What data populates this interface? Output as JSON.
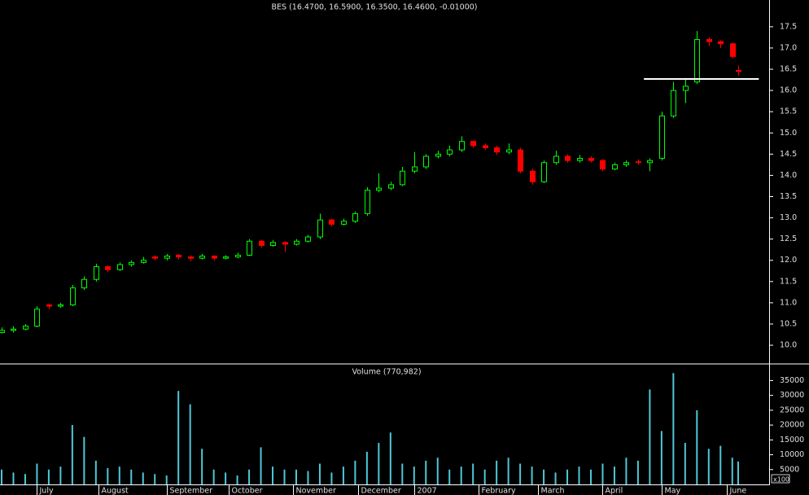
{
  "chart_data": [
    {
      "type": "candlestick",
      "title": "BES (16.4700, 16.5900, 16.3500, 16.4600, -0.01000)",
      "x": [
        0,
        4,
        8,
        12,
        16,
        20,
        24,
        28,
        32,
        36,
        40,
        44,
        48,
        52,
        56,
        60,
        64,
        68,
        72,
        76,
        80,
        84,
        88,
        92,
        96,
        100,
        104,
        108,
        112,
        116,
        120,
        124,
        128,
        132,
        136,
        140,
        144,
        148,
        152,
        156,
        160,
        164,
        168,
        172,
        176,
        180,
        184,
        188,
        192,
        196,
        200,
        204,
        208,
        212,
        216,
        220,
        224,
        228,
        232,
        236,
        240,
        244,
        248,
        250
      ],
      "open": [
        10.3,
        10.35,
        10.38,
        10.45,
        10.95,
        10.92,
        10.95,
        11.35,
        11.55,
        11.85,
        11.78,
        11.9,
        11.95,
        12.08,
        12.05,
        12.12,
        12.08,
        12.05,
        12.1,
        12.05,
        12.08,
        12.12,
        12.45,
        12.35,
        12.42,
        12.38,
        12.45,
        12.55,
        12.95,
        12.85,
        12.92,
        13.1,
        13.65,
        13.7,
        13.78,
        14.1,
        14.2,
        14.45,
        14.5,
        14.6,
        14.8,
        14.7,
        14.65,
        14.55,
        14.6,
        14.1,
        13.85,
        14.3,
        14.45,
        14.35,
        14.4,
        14.35,
        14.15,
        14.25,
        14.32,
        14.3,
        14.4,
        15.4,
        16.0,
        16.2,
        17.2,
        17.15,
        17.1,
        16.47
      ],
      "high": [
        10.42,
        10.45,
        10.5,
        10.92,
        10.98,
        11.0,
        11.42,
        11.62,
        11.92,
        11.88,
        11.95,
        12.0,
        12.08,
        12.12,
        12.15,
        12.15,
        12.12,
        12.15,
        12.12,
        12.12,
        12.18,
        12.5,
        12.48,
        12.48,
        12.45,
        12.5,
        12.6,
        13.1,
        12.98,
        12.98,
        13.15,
        13.72,
        14.05,
        13.85,
        14.2,
        14.55,
        14.5,
        14.58,
        14.7,
        14.92,
        14.82,
        14.75,
        14.7,
        14.75,
        14.65,
        14.15,
        14.35,
        14.58,
        14.5,
        14.48,
        14.45,
        14.38,
        14.3,
        14.35,
        14.38,
        14.4,
        15.5,
        16.2,
        16.25,
        17.4,
        17.25,
        17.18,
        17.12,
        16.59
      ],
      "low": [
        10.28,
        10.3,
        10.35,
        10.42,
        10.85,
        10.88,
        10.92,
        11.3,
        11.5,
        11.72,
        11.75,
        11.85,
        11.92,
        12.0,
        12.0,
        12.02,
        11.98,
        12.02,
        12.0,
        12.02,
        12.05,
        12.1,
        12.3,
        12.32,
        12.2,
        12.35,
        12.42,
        12.5,
        12.8,
        12.82,
        12.88,
        13.05,
        13.6,
        13.65,
        13.75,
        14.05,
        14.15,
        14.4,
        14.45,
        14.55,
        14.65,
        14.6,
        14.48,
        14.5,
        14.05,
        13.78,
        13.82,
        14.25,
        14.3,
        14.3,
        14.3,
        14.1,
        14.12,
        14.2,
        14.25,
        14.1,
        14.35,
        15.35,
        15.7,
        16.15,
        17.05,
        17.0,
        16.75,
        16.35
      ],
      "close": [
        10.35,
        10.38,
        10.45,
        10.85,
        10.92,
        10.95,
        11.35,
        11.55,
        11.85,
        11.78,
        11.9,
        11.95,
        12.0,
        12.05,
        12.1,
        12.08,
        12.05,
        12.1,
        12.05,
        12.08,
        12.12,
        12.45,
        12.35,
        12.42,
        12.38,
        12.45,
        12.55,
        12.95,
        12.85,
        12.92,
        13.1,
        13.65,
        13.7,
        13.78,
        14.1,
        14.2,
        14.45,
        14.5,
        14.6,
        14.8,
        14.7,
        14.65,
        14.55,
        14.6,
        14.1,
        13.85,
        14.3,
        14.45,
        14.35,
        14.4,
        14.35,
        14.15,
        14.25,
        14.3,
        14.3,
        14.35,
        15.4,
        16.0,
        16.1,
        17.2,
        17.15,
        17.1,
        16.8,
        16.46
      ],
      "up_color": "#00ff00",
      "down_color": "#ff0000",
      "xlim": [
        -0.55,
        260.5
      ],
      "ylim": [
        9.56,
        18.13
      ],
      "yticks": [
        {
          "value": 10.0,
          "label": "10.0"
        },
        10.5,
        {
          "value": 11.0,
          "label": "11.0"
        },
        11.5,
        {
          "value": 12.0,
          "label": "12.0"
        },
        12.5,
        {
          "value": 13.0,
          "label": "13.0"
        },
        13.5,
        {
          "value": 14.0,
          "label": "14.0"
        },
        14.5,
        {
          "value": 15.0,
          "label": "15.0"
        },
        15.5,
        {
          "value": 16.0,
          "label": "16.0"
        },
        16.5,
        {
          "value": 17.0,
          "label": "17.0"
        },
        17.5
      ],
      "hline": {
        "value": 16.27,
        "x": [
          218,
          257
        ],
        "color": "#ffffff"
      }
    },
    {
      "type": "bar",
      "title": "Volume (770,982)",
      "x": [
        0,
        4,
        8,
        12,
        16,
        20,
        24,
        28,
        32,
        36,
        40,
        44,
        48,
        52,
        56,
        60,
        64,
        68,
        72,
        76,
        80,
        84,
        88,
        92,
        96,
        100,
        104,
        108,
        112,
        116,
        120,
        124,
        128,
        132,
        136,
        140,
        144,
        148,
        152,
        156,
        160,
        164,
        168,
        172,
        176,
        180,
        184,
        188,
        192,
        196,
        200,
        204,
        208,
        212,
        216,
        220,
        224,
        228,
        232,
        236,
        240,
        244,
        248,
        250
      ],
      "values": [
        5000,
        4000,
        3500,
        7000,
        5000,
        6000,
        20000,
        16000,
        8000,
        5500,
        6000,
        5000,
        4000,
        3500,
        3000,
        31500,
        27000,
        12000,
        5000,
        4000,
        3000,
        5000,
        12500,
        6000,
        5000,
        5000,
        4500,
        7000,
        4000,
        6000,
        8000,
        11000,
        14000,
        17500,
        7000,
        6000,
        8000,
        9000,
        5000,
        6000,
        7000,
        5000,
        8000,
        9000,
        7000,
        6000,
        5000,
        4000,
        5000,
        6000,
        5000,
        7000,
        6000,
        9000,
        8000,
        32000,
        18000,
        37500,
        14000,
        25000,
        12000,
        13000,
        9000,
        7709.82
      ],
      "color": "#4ec8d8",
      "xlim": [
        -0.55,
        260.5
      ],
      "ylim": [
        0,
        40600
      ],
      "yticks": [
        5000,
        10000,
        15000,
        20000,
        25000,
        30000,
        35000
      ],
      "unit_label": "x100",
      "xticks": [
        {
          "value": 12,
          "label": "July"
        },
        {
          "value": 33,
          "label": "August"
        },
        {
          "value": 56,
          "label": "September"
        },
        {
          "value": 77,
          "label": "October"
        },
        {
          "value": 99,
          "label": "November"
        },
        {
          "value": 121,
          "label": "December"
        },
        {
          "value": 140,
          "label": "2007"
        },
        {
          "value": 162,
          "label": "February"
        },
        {
          "value": 182,
          "label": "March"
        },
        {
          "value": 204,
          "label": "April"
        },
        {
          "value": 224,
          "label": "May"
        },
        {
          "value": 246,
          "label": "June"
        }
      ]
    }
  ]
}
